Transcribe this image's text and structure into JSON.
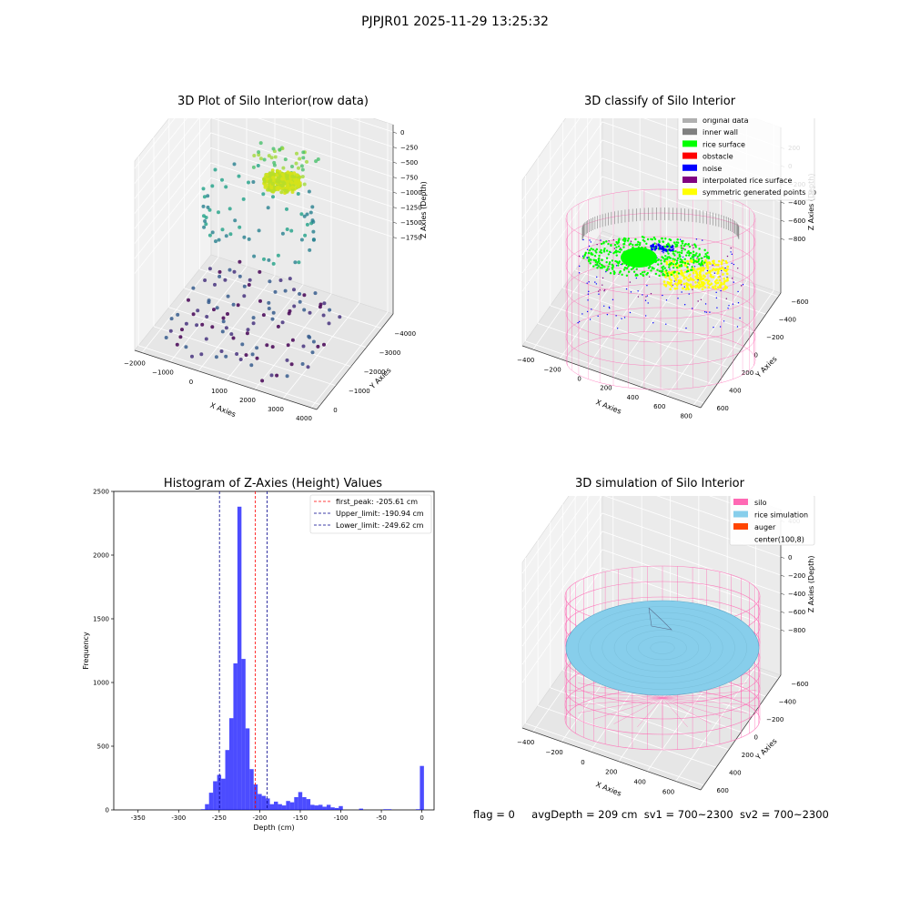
{
  "suptitle": "PJPJR01 2025-11-29 13:25:32",
  "colors": {
    "bar": "#0000ff",
    "peak": "#ff0000",
    "limit": "#00008b",
    "silo": "#ff69b4",
    "rice_simulation": "#87ceeb",
    "auger": "#ff4500",
    "original_data": "#b0b0b0",
    "inner_wall": "#808080",
    "rice_surface": "#00ff00",
    "obstacle": "#ff0000",
    "noise": "#0000ff",
    "interpolated_rice_surface": "#800080",
    "symmetric_generated_points": "#ffff00"
  },
  "chart_data": [
    {
      "type": "scatter",
      "title": "3D Plot of Silo Interior(row data)",
      "xlabel": "X Axies",
      "ylabel": "Y Axies",
      "zlabel": "Z Axies (Depth)",
      "x_ticks": [
        "−2000",
        "−1000",
        "0",
        "1000",
        "2000",
        "3000",
        "4000"
      ],
      "y_ticks": [
        "0",
        "−1000",
        "−2000",
        "−3000",
        "−4000"
      ],
      "z_ticks": [
        "0",
        "−250",
        "−500",
        "−750",
        "−1000",
        "−1250",
        "−1500",
        "−1750"
      ],
      "xlim": [
        -2000,
        4500
      ],
      "ylim": [
        -4500,
        500
      ],
      "zlim": [
        -2000,
        100
      ]
    },
    {
      "type": "scatter",
      "title": "3D classify of Silo Interior",
      "xlabel": "X Axies",
      "ylabel": "Y Axies",
      "zlabel": "Z Axies (Depth)",
      "x_ticks": [
        "−400",
        "−200",
        "0",
        "200",
        "400",
        "600",
        "800"
      ],
      "y_ticks": [
        "600",
        "400",
        "200",
        "0",
        "−200",
        "−400",
        "−600"
      ],
      "z_ticks": [
        "200",
        "0",
        "−200",
        "−400",
        "−600",
        "−800"
      ],
      "z_tick_partial": "00",
      "legend": [
        {
          "label": "original data",
          "color": "#b0b0b0"
        },
        {
          "label": "inner wall",
          "color": "#808080"
        },
        {
          "label": "rice surface",
          "color": "#00ff00"
        },
        {
          "label": "obstacle",
          "color": "#ff0000"
        },
        {
          "label": "noise",
          "color": "#0000ff"
        },
        {
          "label": "interpolated rice surface",
          "color": "#800080"
        },
        {
          "label": "symmetric generated points",
          "color": "#ffff00"
        }
      ],
      "legend_position": "top-right"
    },
    {
      "type": "bar",
      "title": "Histogram of Z-Axies (Height) Values",
      "xlabel": "Depth (cm)",
      "ylabel": "Frequency",
      "xlim": [
        -380,
        15
      ],
      "ylim": [
        0,
        2500
      ],
      "x_ticks": [
        -350,
        -300,
        -250,
        -200,
        -150,
        -100,
        -50,
        0
      ],
      "y_ticks": [
        0,
        500,
        1000,
        1500,
        2000,
        2500
      ],
      "bin_width": 5,
      "bins": [
        [
          -270,
          5
        ],
        [
          -265,
          45
        ],
        [
          -260,
          135
        ],
        [
          -255,
          225
        ],
        [
          -250,
          275
        ],
        [
          -245,
          245
        ],
        [
          -240,
          470
        ],
        [
          -235,
          720
        ],
        [
          -230,
          1150
        ],
        [
          -225,
          2380
        ],
        [
          -220,
          1185
        ],
        [
          -215,
          640
        ],
        [
          -210,
          320
        ],
        [
          -205,
          200
        ],
        [
          -200,
          125
        ],
        [
          -195,
          110
        ],
        [
          -190,
          90
        ],
        [
          -185,
          45
        ],
        [
          -180,
          65
        ],
        [
          -175,
          45
        ],
        [
          -170,
          35
        ],
        [
          -165,
          70
        ],
        [
          -160,
          60
        ],
        [
          -155,
          100
        ],
        [
          -150,
          140
        ],
        [
          -145,
          100
        ],
        [
          -140,
          85
        ],
        [
          -135,
          40
        ],
        [
          -130,
          35
        ],
        [
          -125,
          40
        ],
        [
          -120,
          25
        ],
        [
          -115,
          40
        ],
        [
          -110,
          20
        ],
        [
          -105,
          15
        ],
        [
          -100,
          30
        ],
        [
          -75,
          10
        ],
        [
          -45,
          5
        ],
        [
          -40,
          5
        ],
        [
          -5,
          5
        ],
        [
          0,
          345
        ]
      ],
      "lines": [
        {
          "label": "first_peak: -205.61 cm",
          "x": -205.61,
          "color": "#ff0000"
        },
        {
          "label": "Upper_limit: -190.94 cm",
          "x": -190.94,
          "color": "#00008b"
        },
        {
          "label": "Lower_limit: -249.62 cm",
          "x": -249.62,
          "color": "#00008b"
        }
      ],
      "legend_position": "top-right"
    },
    {
      "type": "surface",
      "title": "3D simulation of Silo Interior",
      "xlabel": "X Axies",
      "ylabel": "Y Axies",
      "zlabel": "Z Axies (Depth)",
      "x_ticks": [
        "−400",
        "−200",
        "0",
        "200",
        "400",
        "600"
      ],
      "y_ticks": [
        "600",
        "400",
        "200",
        "0",
        "−200",
        "−400",
        "−600"
      ],
      "z_ticks": [
        "400",
        "200",
        "0",
        "−200",
        "−400",
        "−600",
        "−800"
      ],
      "legend": [
        {
          "label": "silo",
          "color": "#ff69b4"
        },
        {
          "label": "rice simulation",
          "color": "#87ceeb"
        },
        {
          "label": "auger",
          "color": "#ff4500"
        },
        {
          "label": "center(100,8)",
          "color": "none"
        }
      ],
      "legend_position": "top-right"
    }
  ],
  "status": {
    "flag": "flag = 0",
    "avg": "avgDepth = 209 cm",
    "sv1": "sv1 = 700~2300",
    "sv2": "sv2 = 700~2300"
  }
}
